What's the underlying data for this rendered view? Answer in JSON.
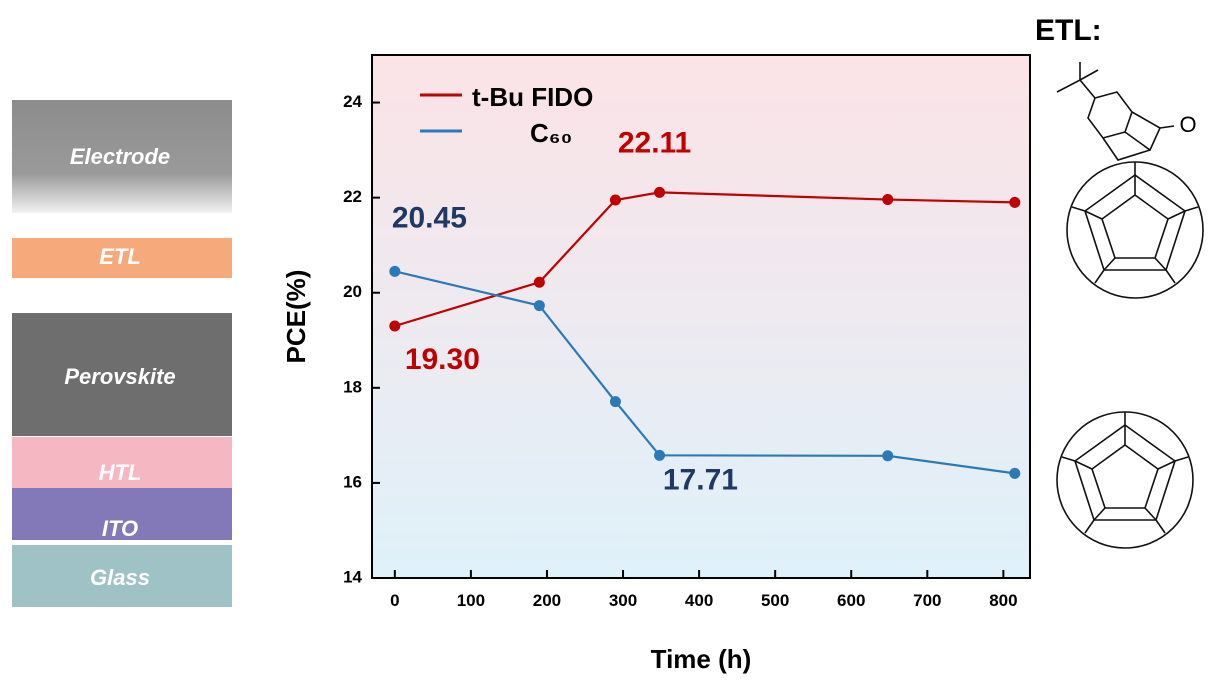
{
  "device_layers": [
    "Electrode",
    "ETL",
    "Perovskite",
    "HTL",
    "ITO",
    "Glass"
  ],
  "structure_title": "ETL:",
  "oxygen_label": "O",
  "chart_data": {
    "type": "line",
    "xlabel": "Time (h)",
    "ylabel": "PCE(%)",
    "x": [
      0,
      190,
      290,
      348,
      648,
      815
    ],
    "series": [
      {
        "name": "t-Bu FIDO",
        "color": "#c00000",
        "values": [
          19.3,
          20.22,
          21.95,
          22.11,
          21.96,
          21.9
        ],
        "value_labels": [
          "19.30",
          null,
          null,
          "22.11",
          null,
          null
        ]
      },
      {
        "name": "C₆₀",
        "color": "#2a7ab8",
        "values": [
          20.45,
          19.73,
          17.71,
          16.58,
          16.57,
          16.2
        ],
        "value_labels": [
          "20.45",
          null,
          "17.71",
          null,
          null,
          null
        ]
      }
    ],
    "xlim": [
      -30,
      835
    ],
    "ylim": [
      14,
      25
    ],
    "xticks": [
      0,
      100,
      200,
      300,
      400,
      500,
      600,
      700,
      800
    ],
    "yticks": [
      14,
      16,
      18,
      20,
      22,
      24
    ]
  }
}
